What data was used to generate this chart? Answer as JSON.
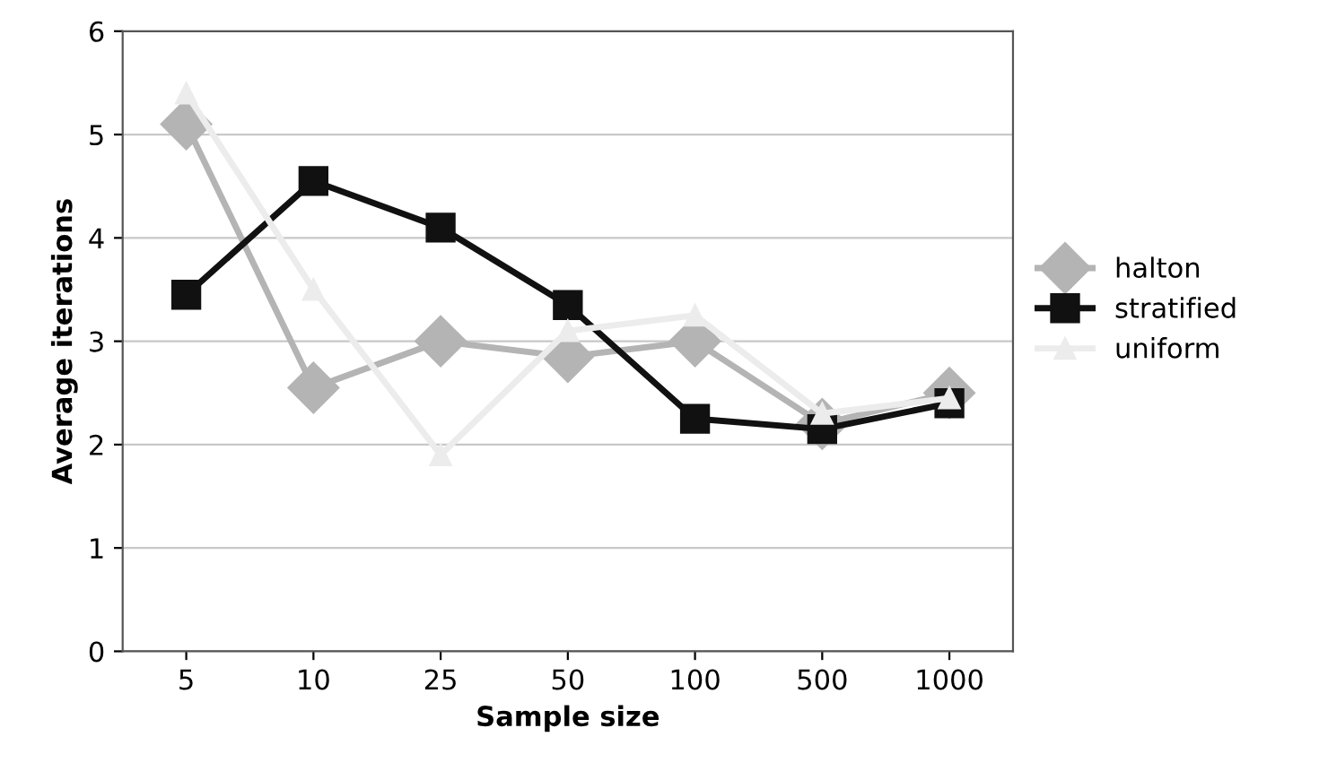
{
  "chart_data": {
    "type": "line",
    "xlabel": "Sample size",
    "ylabel": "Average iterations",
    "categories": [
      "5",
      "10",
      "25",
      "50",
      "100",
      "500",
      "1000"
    ],
    "series": [
      {
        "name": "halton",
        "color": "#b4b4b4",
        "marker": "diamond",
        "values": [
          5.1,
          2.55,
          3.0,
          2.85,
          3.0,
          2.2,
          2.5
        ]
      },
      {
        "name": "stratified",
        "color": "#111111",
        "marker": "square",
        "values": [
          3.45,
          4.55,
          4.1,
          3.35,
          2.25,
          2.15,
          2.4
        ]
      },
      {
        "name": "uniform",
        "color": "#ececec",
        "marker": "triangle",
        "values": [
          5.4,
          3.5,
          1.9,
          3.1,
          3.25,
          2.3,
          2.45
        ]
      }
    ],
    "ylim": [
      0,
      6
    ],
    "yticks": [
      0,
      1,
      2,
      3,
      4,
      5,
      6
    ],
    "grid": "y",
    "legend": "right"
  }
}
